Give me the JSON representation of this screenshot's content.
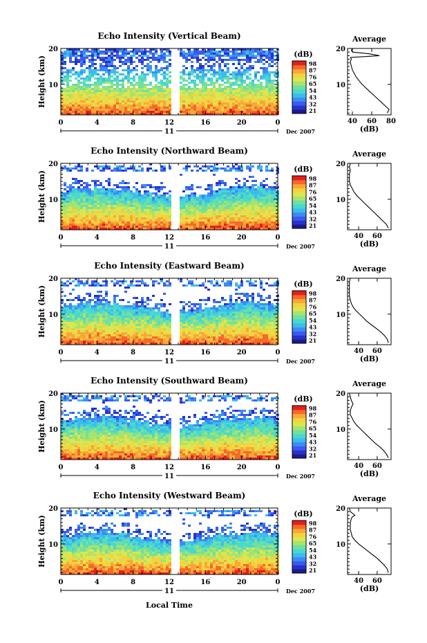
{
  "colorbar": {
    "unit": "(dB)",
    "ticks": [
      "98",
      "87",
      "76",
      "65",
      "54",
      "43",
      "32",
      "21"
    ],
    "colors": [
      "#1c1a8c",
      "#2832c8",
      "#3a5af0",
      "#3c8cf0",
      "#3cbcec",
      "#48d8d0",
      "#70e0a0",
      "#a8e46c",
      "#dce650",
      "#f4d240",
      "#f8a838",
      "#f46a28",
      "#e41e1c"
    ]
  },
  "xaxis": {
    "ticks": [
      "0",
      "4",
      "8",
      "12",
      "16",
      "20",
      "0"
    ],
    "day": "11",
    "month": "Dec 2007",
    "label": "Local Time"
  },
  "yaxis": {
    "label": "Height (km)",
    "ticks": [
      "20",
      "10"
    ]
  },
  "panels": [
    {
      "title": "Echo Intensity (Vertical Beam)",
      "avg_title": "Average",
      "avg_xlabel": "(dB)",
      "avg_ticks": [
        "40",
        "60",
        "80"
      ]
    },
    {
      "title": "Echo Intensity (Northward Beam)",
      "avg_title": "Average",
      "avg_xlabel": "(dB)",
      "avg_ticks": [
        "40",
        "60"
      ]
    },
    {
      "title": "Echo Intensity (Eastward Beam)",
      "avg_title": "Average",
      "avg_xlabel": "(dB)",
      "avg_ticks": [
        "40",
        "60"
      ]
    },
    {
      "title": "Echo Intensity (Southward Beam)",
      "avg_title": "Average",
      "avg_xlabel": "(dB)",
      "avg_ticks": [
        "40",
        "60"
      ]
    },
    {
      "title": "Echo Intensity (Westward Beam)",
      "avg_title": "Average",
      "avg_xlabel": "(dB)",
      "avg_ticks": [
        "40",
        "60"
      ]
    }
  ],
  "chart_data": [
    {
      "type": "heatmap",
      "title": "Echo Intensity (Vertical Beam)",
      "xlabel": "",
      "ylabel": "Height (km)",
      "xlim": [
        0,
        24
      ],
      "ylim": [
        1.5,
        20
      ],
      "zlim": [
        21,
        98
      ],
      "zunit": "dB",
      "data_gap_hours": [
        12.5,
        13.2
      ],
      "date": "11 Dec 2007"
    },
    {
      "type": "line",
      "title": "Average",
      "xlabel": "(dB)",
      "ylabel": "",
      "xlim": [
        35,
        80
      ],
      "ylim": [
        1.5,
        20
      ],
      "series": [
        {
          "x": [
            76,
            78,
            74,
            70,
            66,
            62,
            58,
            54,
            50,
            47,
            44,
            42,
            40,
            39,
            38,
            38,
            39,
            38,
            68,
            58,
            40,
            39,
            40
          ],
          "y": [
            2,
            3,
            4,
            5,
            6,
            7,
            8,
            9,
            10,
            11,
            12,
            13,
            14,
            15,
            16,
            16.5,
            17,
            17.5,
            18,
            18.5,
            19,
            19.5,
            20
          ]
        }
      ]
    },
    {
      "type": "heatmap",
      "title": "Echo Intensity (Northward Beam)",
      "xlabel": "",
      "ylabel": "Height (km)",
      "xlim": [
        0,
        24
      ],
      "ylim": [
        1.5,
        20
      ],
      "zlim": [
        21,
        98
      ],
      "zunit": "dB",
      "data_gap_hours": [
        12.5,
        13.2
      ],
      "date": "11 Dec 2007"
    },
    {
      "type": "line",
      "title": "Average",
      "xlabel": "(dB)",
      "ylabel": "",
      "xlim": [
        28,
        75
      ],
      "ylim": [
        1.5,
        20
      ],
      "series": [
        {
          "x": [
            72,
            70,
            66,
            62,
            58,
            54,
            50,
            46,
            42,
            38,
            35,
            33,
            31,
            30,
            30,
            30,
            31,
            30,
            31
          ],
          "y": [
            2,
            3,
            4,
            5,
            6,
            7,
            8,
            9,
            10,
            11,
            12,
            13,
            14,
            15,
            16,
            17,
            18,
            19,
            20
          ]
        }
      ]
    },
    {
      "type": "heatmap",
      "title": "Echo Intensity (Eastward Beam)",
      "xlabel": "",
      "ylabel": "Height (km)",
      "xlim": [
        0,
        24
      ],
      "ylim": [
        1.5,
        20
      ],
      "zlim": [
        21,
        98
      ],
      "zunit": "dB",
      "data_gap_hours": [
        12.5,
        13.2
      ],
      "date": "11 Dec 2007"
    },
    {
      "type": "line",
      "title": "Average",
      "xlabel": "(dB)",
      "ylabel": "",
      "xlim": [
        28,
        75
      ],
      "ylim": [
        1.5,
        20
      ],
      "series": [
        {
          "x": [
            72,
            71,
            68,
            64,
            59,
            54,
            49,
            45,
            41,
            37,
            34,
            32,
            31,
            30,
            30,
            30,
            30,
            30,
            31
          ],
          "y": [
            2,
            3,
            4,
            5,
            6,
            7,
            8,
            9,
            10,
            11,
            12,
            13,
            14,
            15,
            16,
            17,
            18,
            19,
            20
          ]
        }
      ]
    },
    {
      "type": "heatmap",
      "title": "Echo Intensity (Southward Beam)",
      "xlabel": "",
      "ylabel": "Height (km)",
      "xlim": [
        0,
        24
      ],
      "ylim": [
        1.5,
        20
      ],
      "zlim": [
        21,
        98
      ],
      "zunit": "dB",
      "data_gap_hours": [
        12.5,
        13.2
      ],
      "date": "11 Dec 2007"
    },
    {
      "type": "line",
      "title": "Average",
      "xlabel": "(dB)",
      "ylabel": "",
      "xlim": [
        28,
        75
      ],
      "ylim": [
        1.5,
        20
      ],
      "series": [
        {
          "x": [
            72,
            70,
            67,
            63,
            58,
            54,
            50,
            46,
            42,
            38,
            35,
            33,
            31,
            31,
            32,
            34,
            32,
            31,
            30
          ],
          "y": [
            2,
            3,
            4,
            5,
            6,
            7,
            8,
            9,
            10,
            11,
            12,
            13,
            14,
            15,
            16,
            17,
            18,
            19,
            20
          ]
        }
      ]
    },
    {
      "type": "heatmap",
      "title": "Echo Intensity (Westward Beam)",
      "xlabel": "Local Time",
      "ylabel": "Height (km)",
      "xlim": [
        0,
        24
      ],
      "ylim": [
        1.5,
        20
      ],
      "zlim": [
        21,
        98
      ],
      "zunit": "dB",
      "data_gap_hours": [
        12.5,
        13.2
      ],
      "date": "11 Dec 2007"
    },
    {
      "type": "line",
      "title": "Average",
      "xlabel": "(dB)",
      "ylabel": "",
      "xlim": [
        28,
        75
      ],
      "ylim": [
        1.5,
        20
      ],
      "series": [
        {
          "x": [
            72,
            71,
            68,
            64,
            60,
            55,
            50,
            45,
            40,
            36,
            33,
            32,
            31,
            31,
            31,
            32,
            33,
            36,
            31,
            30
          ],
          "y": [
            2,
            3,
            4,
            5,
            6,
            7,
            8,
            9,
            10,
            11,
            12,
            13,
            14,
            15,
            16,
            17,
            17.5,
            18,
            19,
            20
          ]
        }
      ]
    }
  ]
}
